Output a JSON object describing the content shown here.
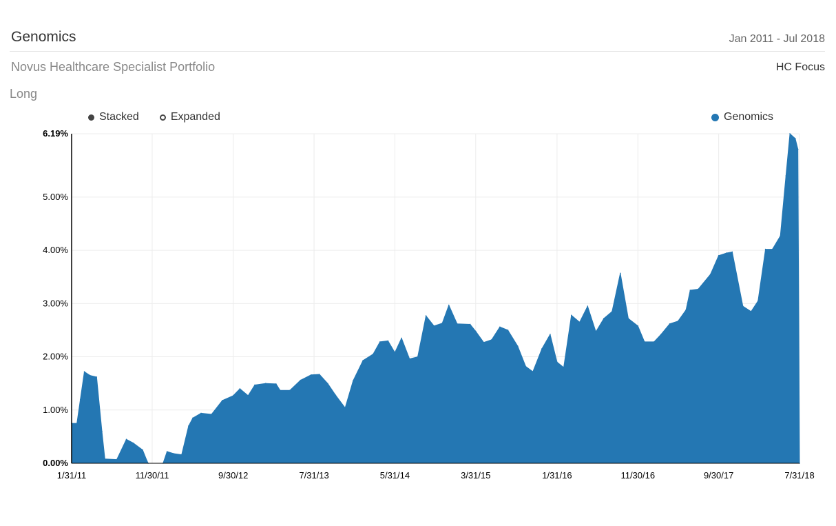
{
  "header": {
    "title": "Genomics",
    "date_range": "Jan 2011 - Jul 2018",
    "portfolio": "Novus Healthcare Specialist Portfolio",
    "focus": "HC Focus",
    "side": "Long"
  },
  "controls": {
    "stacked_label": "Stacked",
    "expanded_label": "Expanded",
    "selected": "Stacked"
  },
  "colors": {
    "series": "#2477b3",
    "grid": "#ececec",
    "axis": "#000000"
  },
  "chart_data": {
    "type": "area",
    "xlabel": "",
    "ylabel": "",
    "ylim": [
      0,
      6.19
    ],
    "xlim": [
      "2011-01-31",
      "2018-07-31"
    ],
    "grid": true,
    "legend_position": "top-right",
    "y_ticks": [
      {
        "value": 0,
        "label": "0.00%"
      },
      {
        "value": 1,
        "label": "1.00%"
      },
      {
        "value": 2,
        "label": "2.00%"
      },
      {
        "value": 3,
        "label": "3.00%"
      },
      {
        "value": 4,
        "label": "4.00%"
      },
      {
        "value": 5,
        "label": "5.00%"
      },
      {
        "value": 6.19,
        "label": "6.19%"
      }
    ],
    "x_ticks": [
      {
        "date": "2011-01-31",
        "label": "1/31/11"
      },
      {
        "date": "2011-11-30",
        "label": "11/30/11"
      },
      {
        "date": "2012-09-30",
        "label": "9/30/12"
      },
      {
        "date": "2013-07-31",
        "label": "7/31/13"
      },
      {
        "date": "2014-05-31",
        "label": "5/31/14"
      },
      {
        "date": "2015-03-31",
        "label": "3/31/15"
      },
      {
        "date": "2016-01-31",
        "label": "1/31/16"
      },
      {
        "date": "2016-11-30",
        "label": "11/30/16"
      },
      {
        "date": "2017-09-30",
        "label": "9/30/17"
      },
      {
        "date": "2018-07-31",
        "label": "7/31/18"
      }
    ],
    "series": [
      {
        "name": "Genomics",
        "points": [
          [
            "2011-01-31",
            0.75
          ],
          [
            "2011-02-20",
            0.75
          ],
          [
            "2011-03-05",
            1.2
          ],
          [
            "2011-03-20",
            1.72
          ],
          [
            "2011-04-10",
            1.65
          ],
          [
            "2011-05-05",
            1.62
          ],
          [
            "2011-05-25",
            0.6
          ],
          [
            "2011-06-05",
            0.08
          ],
          [
            "2011-07-20",
            0.07
          ],
          [
            "2011-08-25",
            0.45
          ],
          [
            "2011-09-20",
            0.38
          ],
          [
            "2011-10-25",
            0.25
          ],
          [
            "2011-11-10",
            0.05
          ],
          [
            "2011-11-15",
            0
          ],
          [
            "2012-01-10",
            0
          ],
          [
            "2012-01-25",
            0.22
          ],
          [
            "2012-02-20",
            0.18
          ],
          [
            "2012-03-20",
            0.16
          ],
          [
            "2012-04-15",
            0.7
          ],
          [
            "2012-05-01",
            0.85
          ],
          [
            "2012-06-01",
            0.94
          ],
          [
            "2012-07-10",
            0.92
          ],
          [
            "2012-08-20",
            1.18
          ],
          [
            "2012-09-30",
            1.27
          ],
          [
            "2012-10-25",
            1.4
          ],
          [
            "2012-11-25",
            1.27
          ],
          [
            "2012-12-20",
            1.47
          ],
          [
            "2013-01-30",
            1.5
          ],
          [
            "2013-03-10",
            1.49
          ],
          [
            "2013-03-25",
            1.37
          ],
          [
            "2013-05-01",
            1.37
          ],
          [
            "2013-06-10",
            1.56
          ],
          [
            "2013-07-20",
            1.66
          ],
          [
            "2013-08-20",
            1.67
          ],
          [
            "2013-09-20",
            1.5
          ],
          [
            "2013-10-20",
            1.28
          ],
          [
            "2013-11-25",
            1.04
          ],
          [
            "2013-12-25",
            1.55
          ],
          [
            "2014-01-31",
            1.93
          ],
          [
            "2014-03-10",
            2.05
          ],
          [
            "2014-04-05",
            2.28
          ],
          [
            "2014-05-05",
            2.3
          ],
          [
            "2014-05-31",
            2.08
          ],
          [
            "2014-06-25",
            2.35
          ],
          [
            "2014-07-25",
            1.96
          ],
          [
            "2014-08-25",
            2.0
          ],
          [
            "2014-09-25",
            2.77
          ],
          [
            "2014-10-25",
            2.58
          ],
          [
            "2014-11-25",
            2.63
          ],
          [
            "2014-12-20",
            2.97
          ],
          [
            "2015-01-20",
            2.62
          ],
          [
            "2015-03-10",
            2.61
          ],
          [
            "2015-03-31",
            2.48
          ],
          [
            "2015-04-30",
            2.27
          ],
          [
            "2015-05-30",
            2.32
          ],
          [
            "2015-06-30",
            2.56
          ],
          [
            "2015-07-30",
            2.5
          ],
          [
            "2015-09-05",
            2.2
          ],
          [
            "2015-10-05",
            1.82
          ],
          [
            "2015-11-01",
            1.72
          ],
          [
            "2015-12-05",
            2.15
          ],
          [
            "2016-01-05",
            2.42
          ],
          [
            "2016-01-31",
            1.9
          ],
          [
            "2016-02-25",
            1.8
          ],
          [
            "2016-03-25",
            2.78
          ],
          [
            "2016-04-25",
            2.65
          ],
          [
            "2016-05-25",
            2.95
          ],
          [
            "2016-06-25",
            2.47
          ],
          [
            "2016-07-25",
            2.72
          ],
          [
            "2016-08-25",
            2.85
          ],
          [
            "2016-09-25",
            3.57
          ],
          [
            "2016-10-25",
            2.72
          ],
          [
            "2016-11-30",
            2.58
          ],
          [
            "2016-12-25",
            2.28
          ],
          [
            "2017-01-30",
            2.28
          ],
          [
            "2017-02-25",
            2.42
          ],
          [
            "2017-03-30",
            2.62
          ],
          [
            "2017-04-30",
            2.67
          ],
          [
            "2017-05-30",
            2.88
          ],
          [
            "2017-06-15",
            3.25
          ],
          [
            "2017-07-15",
            3.27
          ],
          [
            "2017-08-30",
            3.55
          ],
          [
            "2017-09-30",
            3.9
          ],
          [
            "2017-10-30",
            3.95
          ],
          [
            "2017-11-20",
            3.97
          ],
          [
            "2017-12-30",
            2.95
          ],
          [
            "2018-01-30",
            2.85
          ],
          [
            "2018-02-25",
            3.05
          ],
          [
            "2018-03-25",
            4.02
          ],
          [
            "2018-04-20",
            4.02
          ],
          [
            "2018-05-20",
            4.27
          ],
          [
            "2018-06-10",
            5.4
          ],
          [
            "2018-06-25",
            6.19
          ],
          [
            "2018-07-15",
            6.1
          ],
          [
            "2018-07-25",
            5.9
          ],
          [
            "2018-07-31",
            0
          ]
        ]
      }
    ]
  }
}
